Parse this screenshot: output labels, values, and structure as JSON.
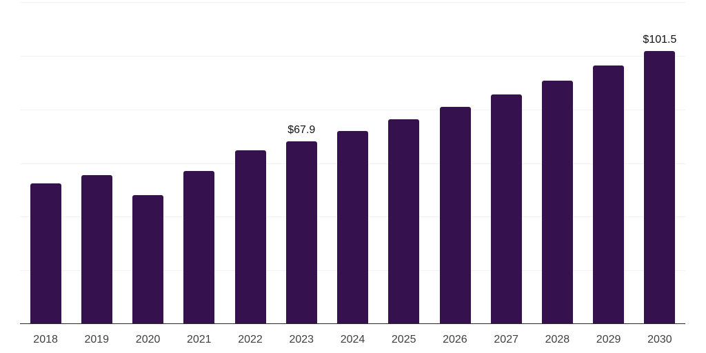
{
  "chart_data": {
    "type": "bar",
    "title": "",
    "xlabel": "",
    "ylabel": "",
    "categories": [
      "2018",
      "2019",
      "2020",
      "2021",
      "2022",
      "2023",
      "2024",
      "2025",
      "2026",
      "2027",
      "2028",
      "2029",
      "2030"
    ],
    "values": [
      52.2,
      55.2,
      47.7,
      56.7,
      64.6,
      67.9,
      71.8,
      76.2,
      80.7,
      85.4,
      90.4,
      96.0,
      101.5
    ],
    "data_labels": {
      "2023": "$67.9",
      "2030": "$101.5"
    },
    "currency_prefix": "$",
    "ylim": [
      0,
      120
    ],
    "grid_interval": 20,
    "grid": true,
    "legend": false,
    "y_tick_labels_visible": false,
    "colors": {
      "bar": "#35124d",
      "grid": "#f2f2f2",
      "axis": "#2a2a2a",
      "tick_label": "#3f3f3f",
      "data_label": "#111111",
      "background": "#ffffff"
    }
  }
}
